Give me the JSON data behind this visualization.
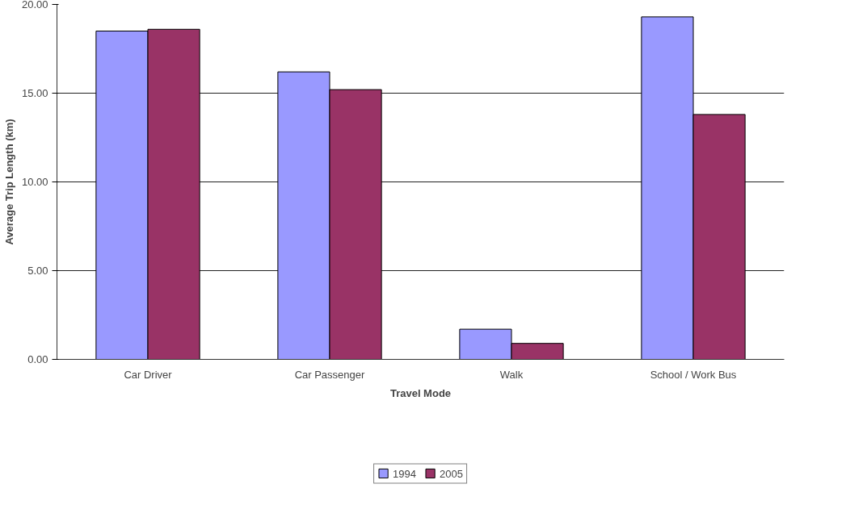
{
  "chart_data": {
    "type": "bar",
    "xlabel": "Travel Mode",
    "ylabel": "Average Trip Length (km)",
    "categories": [
      "Car Driver",
      "Car Passenger",
      "Walk",
      "School / Work Bus"
    ],
    "series": [
      {
        "name": "1994",
        "color": "#9999ff",
        "values": [
          18.5,
          16.2,
          1.7,
          19.3
        ]
      },
      {
        "name": "2005",
        "color": "#993366",
        "values": [
          18.6,
          15.2,
          0.9,
          13.8
        ]
      }
    ],
    "ylim": [
      0,
      20
    ],
    "yticks": [
      {
        "value": 0,
        "label": "0.00"
      },
      {
        "value": 5,
        "label": "5.00"
      },
      {
        "value": 10,
        "label": "10.00"
      },
      {
        "value": 15,
        "label": "15.00"
      },
      {
        "value": 20,
        "label": "20.00"
      }
    ],
    "grid": "y",
    "legend": "bottom"
  }
}
